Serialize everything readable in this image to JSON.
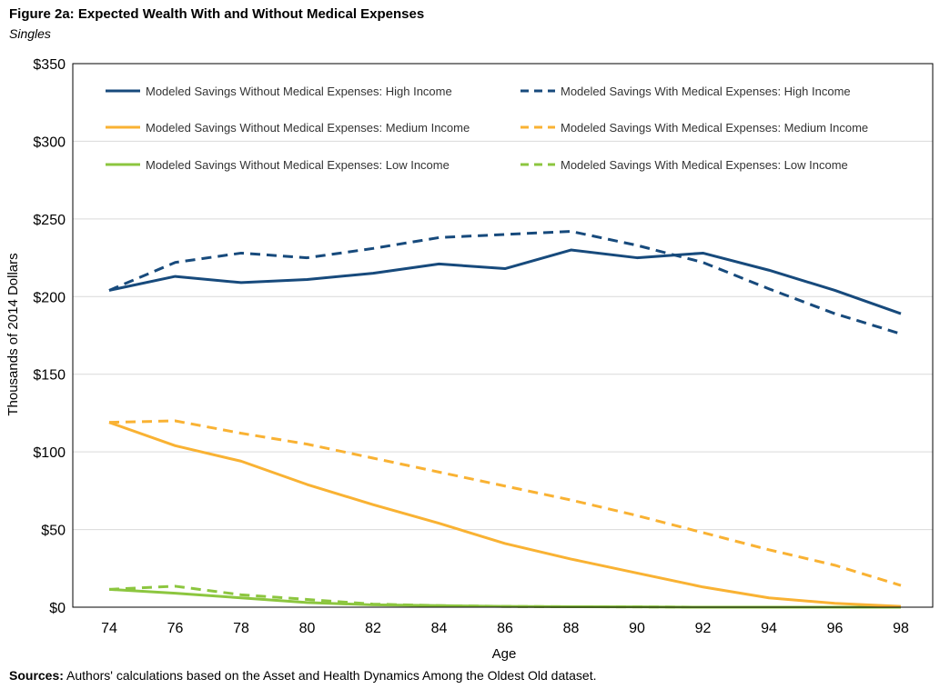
{
  "figure": {
    "title": "Figure 2a: Expected Wealth With and Without Medical Expenses",
    "subtitle": "Singles"
  },
  "sources": {
    "label": "Sources:",
    "text": " Authors' calculations based on the Asset and Health Dynamics Among the Oldest Old dataset."
  },
  "chart_data": {
    "type": "line",
    "title": "Figure 2a: Expected Wealth With and Without Medical Expenses",
    "subtitle": "Singles",
    "xlabel": "Age",
    "ylabel": "Thousands of 2014 Dollars",
    "x": [
      74,
      76,
      78,
      80,
      82,
      84,
      86,
      88,
      90,
      92,
      94,
      96,
      98
    ],
    "xlim": [
      74,
      98
    ],
    "ylim": [
      0,
      350
    ],
    "ytick_values": [
      0,
      50,
      100,
      150,
      200,
      250,
      300,
      350
    ],
    "ytick_labels": [
      "$0",
      "$50",
      "$100",
      "$150",
      "$200",
      "$250",
      "$300",
      "$350"
    ],
    "grid": "horizontal",
    "legend_position": "top, inside plot, two columns",
    "series": [
      {
        "name": "Modeled Savings Without Medical Expenses: High Income",
        "color": "#174a7c",
        "style": "solid",
        "values": [
          204,
          213,
          209,
          211,
          215,
          221,
          218,
          230,
          225,
          228,
          217,
          204,
          189
        ]
      },
      {
        "name": "Modeled Savings With Medical Expenses: High Income",
        "color": "#174a7c",
        "style": "dashed",
        "values": [
          204,
          222,
          228,
          225,
          231,
          238,
          240,
          242,
          233,
          222,
          205,
          189,
          176
        ]
      },
      {
        "name": "Modeled Savings Without Medical Expenses: Medium Income",
        "color": "#f9b233",
        "style": "solid",
        "values": [
          119,
          104,
          94,
          79,
          66,
          54,
          41,
          31,
          22,
          13,
          6,
          2.5,
          0.5
        ]
      },
      {
        "name": "Modeled Savings With Medical Expenses: Medium Income",
        "color": "#f9b233",
        "style": "dashed",
        "values": [
          119,
          120,
          112,
          105,
          96,
          87,
          78,
          69,
          59,
          48,
          37,
          27,
          14
        ]
      },
      {
        "name": "Modeled Savings Without Medical Expenses: Low Income",
        "color": "#8cc63f",
        "style": "solid",
        "values": [
          11.5,
          9,
          6,
          3,
          1.5,
          1,
          0.5,
          0.3,
          0.2,
          0,
          0,
          0,
          0
        ]
      },
      {
        "name": "Modeled Savings With Medical Expenses: Low Income",
        "color": "#8cc63f",
        "style": "dashed",
        "values": [
          11.5,
          13.5,
          8,
          5,
          2,
          1,
          0.5,
          0.3,
          0.2,
          0,
          0,
          0,
          0
        ]
      }
    ]
  }
}
